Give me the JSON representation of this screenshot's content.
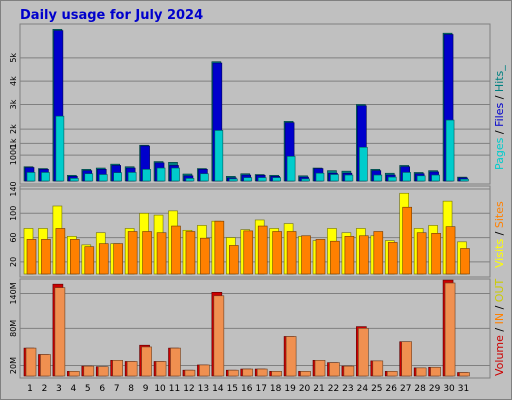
{
  "title": "Daily usage for July 2024",
  "colors": {
    "background": "#C0C0C0",
    "border": "#808080",
    "pages": "#00CCCC",
    "files": "#0000CC",
    "hits": "#008080",
    "visits": "#FFFF00",
    "sites": "#FF8000",
    "volume": "#CC0000",
    "in": "#FF8000",
    "out": "#CCCC00",
    "weekend": "#008000",
    "title": "#0000CC"
  },
  "legends": {
    "top": [
      {
        "text": "Pages",
        "color": "#00CCCC"
      },
      {
        "text": " / ",
        "color": "#000000"
      },
      {
        "text": "Files",
        "color": "#0000CC"
      },
      {
        "text": " / ",
        "color": "#000000"
      },
      {
        "text": "Hits_",
        "color": "#008080"
      }
    ],
    "mid": [
      {
        "text": "Visits",
        "color": "#FFFF00"
      },
      {
        "text": " / ",
        "color": "#000000"
      },
      {
        "text": "Sites",
        "color": "#FF8000"
      }
    ],
    "bot": [
      {
        "text": "Volume",
        "color": "#CC0000"
      },
      {
        "text": " / ",
        "color": "#000000"
      },
      {
        "text": "IN",
        "color": "#FF8000"
      },
      {
        "text": " / ",
        "color": "#000000"
      },
      {
        "text": "OUT",
        "color": "#CCCC00"
      }
    ]
  },
  "chart_data": [
    {
      "type": "bar",
      "name": "hits-files-pages",
      "x": [
        1,
        2,
        3,
        4,
        5,
        6,
        7,
        8,
        9,
        10,
        11,
        12,
        13,
        14,
        15,
        16,
        17,
        18,
        19,
        20,
        21,
        22,
        23,
        24,
        25,
        26,
        27,
        28,
        29,
        30,
        31
      ],
      "weekend_days": [
        6,
        7,
        13,
        14,
        20,
        21,
        27,
        28
      ],
      "ylim": [
        0,
        5900
      ],
      "yticks": [
        {
          "label": "1000",
          "value": 1000
        },
        {
          "label": "1k",
          "value": 1450
        },
        {
          "label": "2k",
          "value": 2000
        },
        {
          "label": "3k",
          "value": 2950
        },
        {
          "label": "4k",
          "value": 3850
        },
        {
          "label": "5k",
          "value": 4750
        }
      ],
      "series": [
        {
          "name": "Hits",
          "values": [
            550,
            480,
            5850,
            220,
            450,
            500,
            650,
            550,
            1380,
            750,
            720,
            270,
            480,
            4600,
            180,
            280,
            250,
            220,
            2300,
            200,
            500,
            400,
            380,
            2950,
            450,
            300,
            600,
            330,
            400,
            5700,
            150
          ]
        },
        {
          "name": "Files",
          "values": [
            520,
            450,
            5800,
            180,
            400,
            450,
            600,
            500,
            1350,
            700,
            600,
            200,
            450,
            4550,
            120,
            230,
            220,
            180,
            2250,
            150,
            480,
            300,
            300,
            2900,
            400,
            230,
            550,
            280,
            350,
            5650,
            120
          ]
        },
        {
          "name": "Pages",
          "values": [
            330,
            330,
            2500,
            100,
            280,
            250,
            320,
            330,
            450,
            500,
            500,
            100,
            280,
            1950,
            80,
            130,
            130,
            130,
            950,
            80,
            300,
            250,
            230,
            1300,
            230,
            150,
            330,
            200,
            230,
            2350,
            70
          ]
        }
      ]
    },
    {
      "type": "bar",
      "name": "visits-sites",
      "x": [
        1,
        2,
        3,
        4,
        5,
        6,
        7,
        8,
        9,
        10,
        11,
        12,
        13,
        14,
        15,
        16,
        17,
        18,
        19,
        20,
        21,
        22,
        23,
        24,
        25,
        26,
        27,
        28,
        29,
        30,
        31
      ],
      "ylim": [
        0,
        140
      ],
      "yticks": [
        {
          "label": "20",
          "value": 20
        },
        {
          "label": "60",
          "value": 60
        },
        {
          "label": "100",
          "value": 100
        },
        {
          "label": "140",
          "value": 140
        }
      ],
      "series": [
        {
          "name": "Visits",
          "values": [
            75,
            75,
            112,
            62,
            48,
            68,
            50,
            75,
            100,
            97,
            104,
            72,
            80,
            87,
            60,
            73,
            89,
            75,
            83,
            62,
            55,
            75,
            68,
            75,
            63,
            55,
            133,
            75,
            80,
            120,
            53
          ]
        },
        {
          "name": "Sites",
          "values": [
            57,
            57,
            75,
            57,
            45,
            50,
            50,
            70,
            70,
            68,
            79,
            70,
            59,
            87,
            47,
            71,
            79,
            70,
            70,
            63,
            57,
            54,
            62,
            63,
            70,
            52,
            110,
            68,
            67,
            78,
            42
          ]
        }
      ]
    },
    {
      "type": "bar",
      "name": "volume",
      "x": [
        1,
        2,
        3,
        4,
        5,
        6,
        7,
        8,
        9,
        10,
        11,
        12,
        13,
        14,
        15,
        16,
        17,
        18,
        19,
        20,
        21,
        22,
        23,
        24,
        25,
        26,
        27,
        28,
        29,
        30,
        31
      ],
      "ylim": [
        0,
        160
      ],
      "yticks": [
        {
          "label": "20M",
          "value": 18
        },
        {
          "label": "80M",
          "value": 82
        },
        {
          "label": "140M",
          "value": 142
        }
      ],
      "series": [
        {
          "name": "Volume",
          "values": [
            48,
            37,
            158,
            8,
            17,
            16,
            27,
            25,
            53,
            25,
            48,
            10,
            19,
            144,
            10,
            12,
            12,
            8,
            68,
            8,
            27,
            23,
            17,
            85,
            26,
            8,
            59,
            14,
            15,
            165,
            6
          ]
        },
        {
          "name": "IN",
          "values": [
            48,
            37,
            152,
            8,
            17,
            16,
            27,
            25,
            50,
            25,
            48,
            10,
            19,
            138,
            10,
            12,
            12,
            8,
            68,
            8,
            27,
            23,
            17,
            82,
            26,
            8,
            59,
            14,
            15,
            160,
            6
          ]
        }
      ]
    }
  ]
}
